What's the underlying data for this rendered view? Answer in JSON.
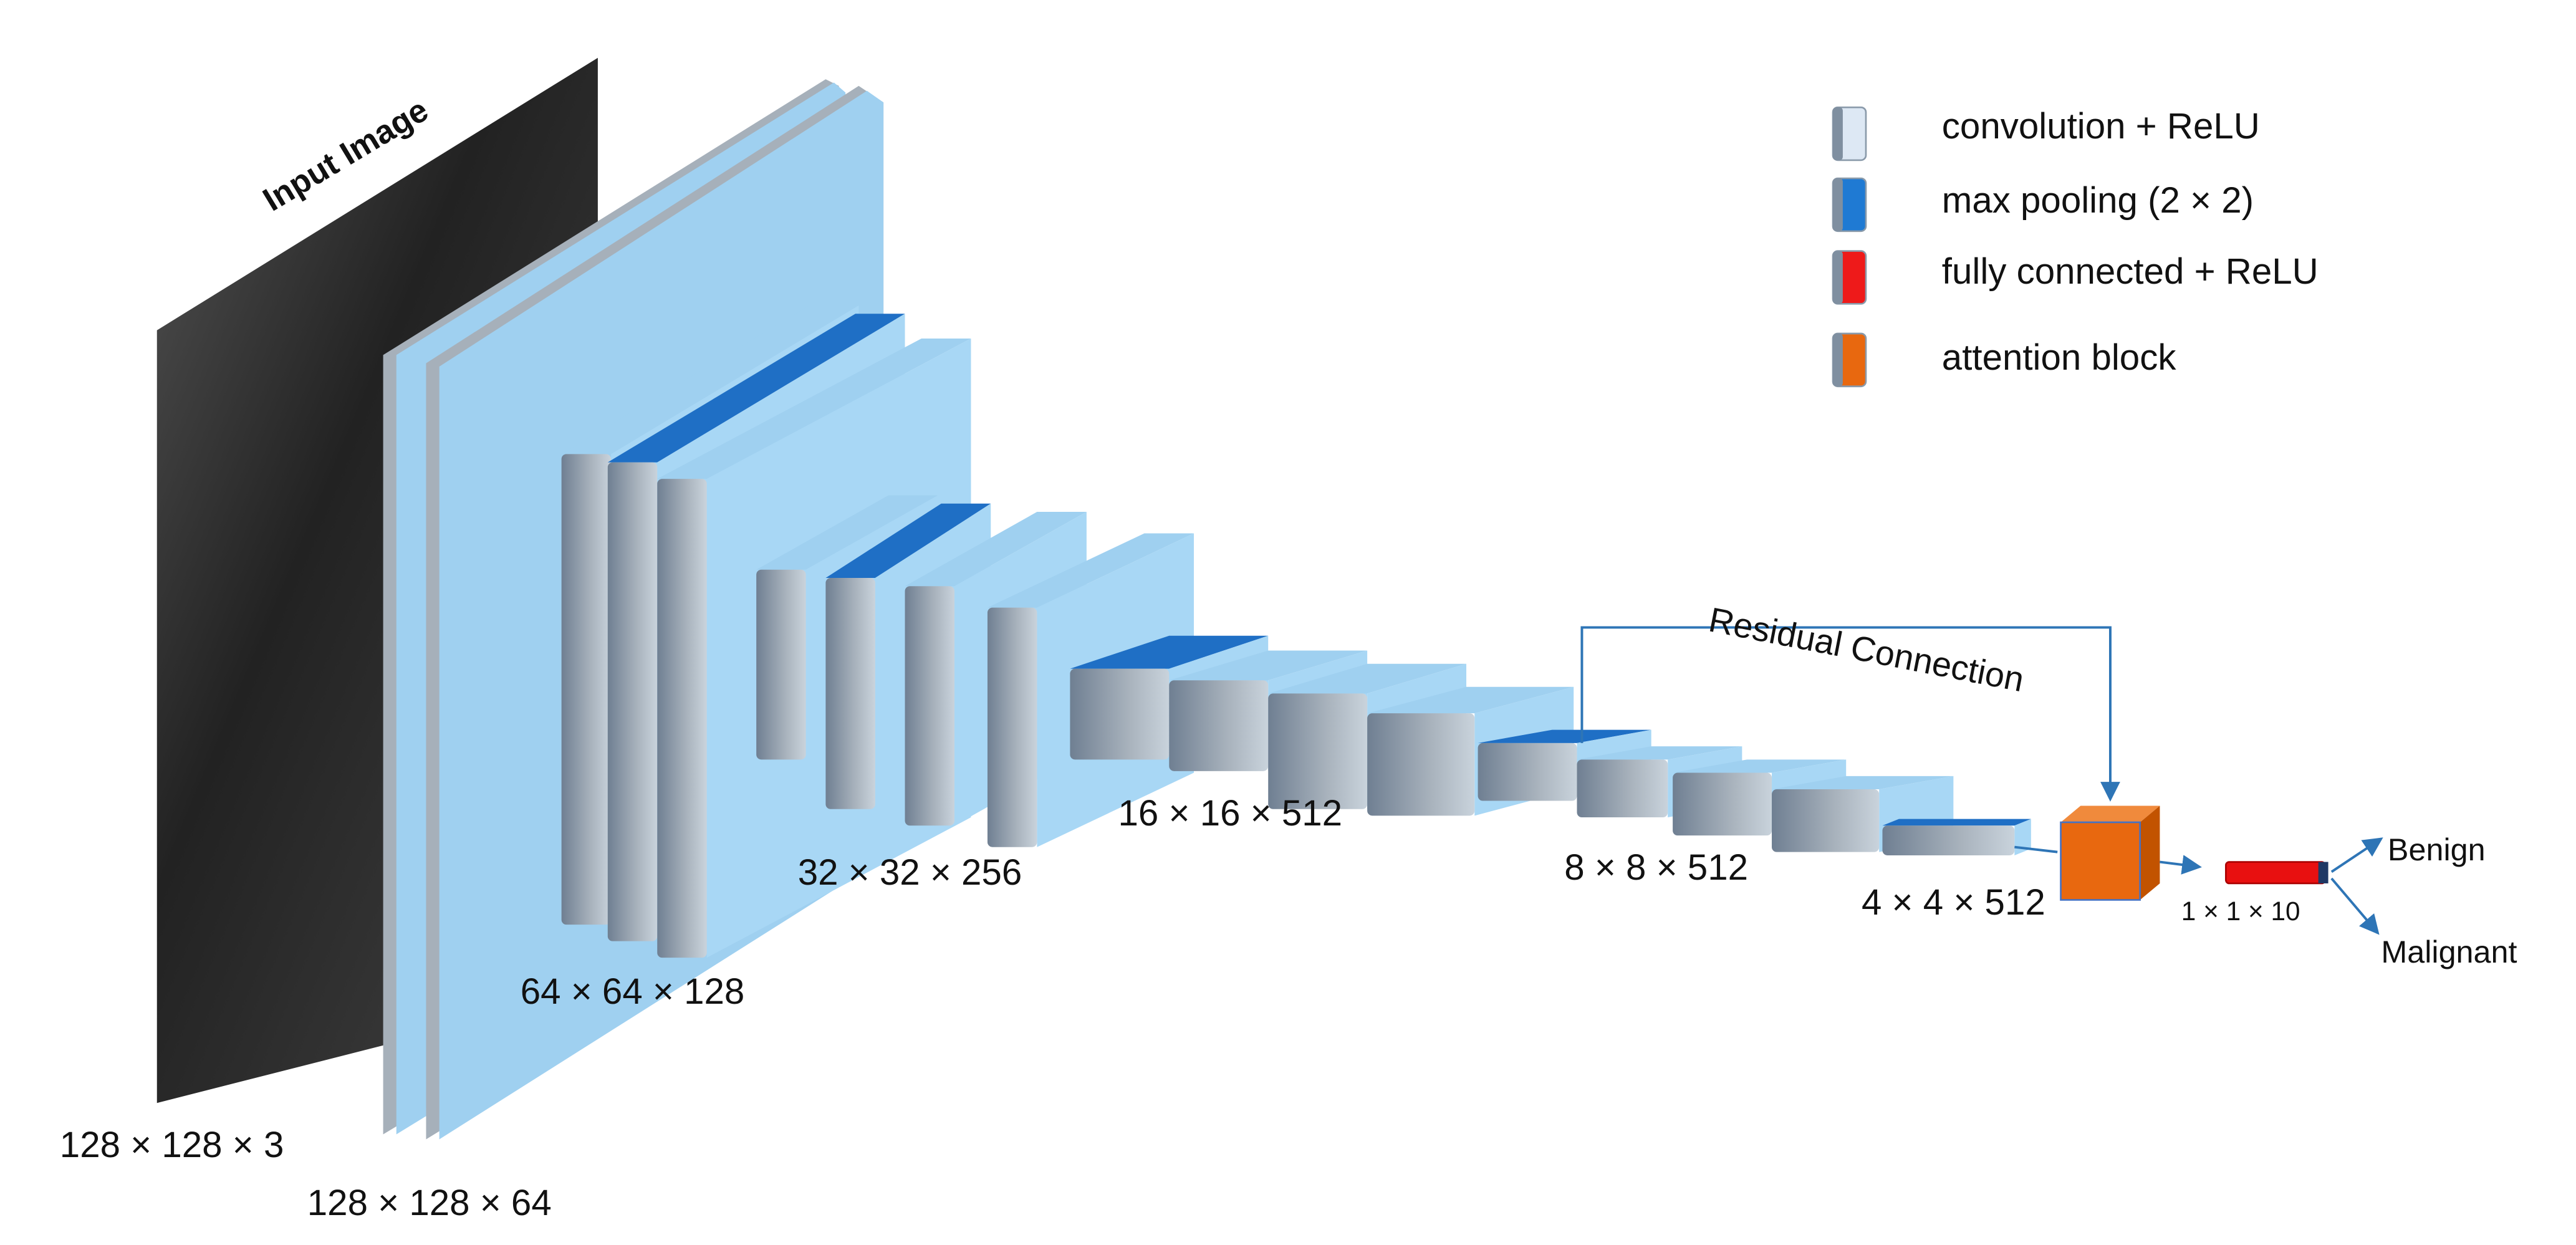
{
  "input_label": "Input Image",
  "legend": [
    {
      "label": "convolution + ReLU"
    },
    {
      "label": "max pooling (2 × 2)"
    },
    {
      "label": "fully connected + ReLU"
    },
    {
      "label": "attention block"
    }
  ],
  "layers": [
    {
      "label": "128 × 128 × 3"
    },
    {
      "label": "128 × 128 × 64"
    },
    {
      "label": "64 × 64 × 128"
    },
    {
      "label": "32 × 32 × 256"
    },
    {
      "label": "16 × 16 × 512"
    },
    {
      "label": "8 × 8 × 512"
    },
    {
      "label": "4 × 4 × 512"
    },
    {
      "label": "1 × 1 × 10"
    }
  ],
  "residual_label": "Residual Connection",
  "outputs": [
    "Benign",
    "Malignant"
  ]
}
